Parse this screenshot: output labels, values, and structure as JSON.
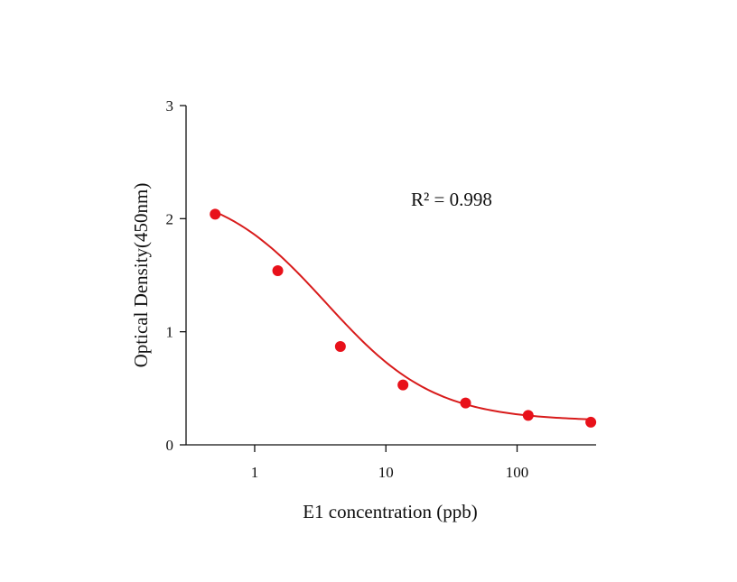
{
  "chart_data": {
    "type": "scatter",
    "title": "",
    "xlabel": "E1 concentration (ppb)",
    "ylabel": "Optical Density(450nm)",
    "x_scale": "log",
    "xlim": [
      0.3,
      400
    ],
    "ylim": [
      0,
      3
    ],
    "x_ticks": [
      1,
      10,
      100
    ],
    "x_tick_labels": [
      "1",
      "10",
      "100"
    ],
    "y_ticks": [
      0,
      1,
      2,
      3
    ],
    "y_tick_labels": [
      "0",
      "1",
      "2",
      "3"
    ],
    "grid": false,
    "legend": "none",
    "annotation": "R² = 0.998",
    "point_color": "#e8111a",
    "curve_color": "#d81b1b",
    "points": [
      {
        "x": 0.5,
        "y": 2.04
      },
      {
        "x": 1.5,
        "y": 1.54
      },
      {
        "x": 4.5,
        "y": 0.87
      },
      {
        "x": 13.5,
        "y": 0.53
      },
      {
        "x": 40.5,
        "y": 0.37
      },
      {
        "x": 121.5,
        "y": 0.26
      },
      {
        "x": 364.5,
        "y": 0.2
      }
    ],
    "fit": {
      "model": "4PL",
      "top": 2.3,
      "bottom": 0.21,
      "ec50": 3.5,
      "hill": 1.05
    }
  }
}
